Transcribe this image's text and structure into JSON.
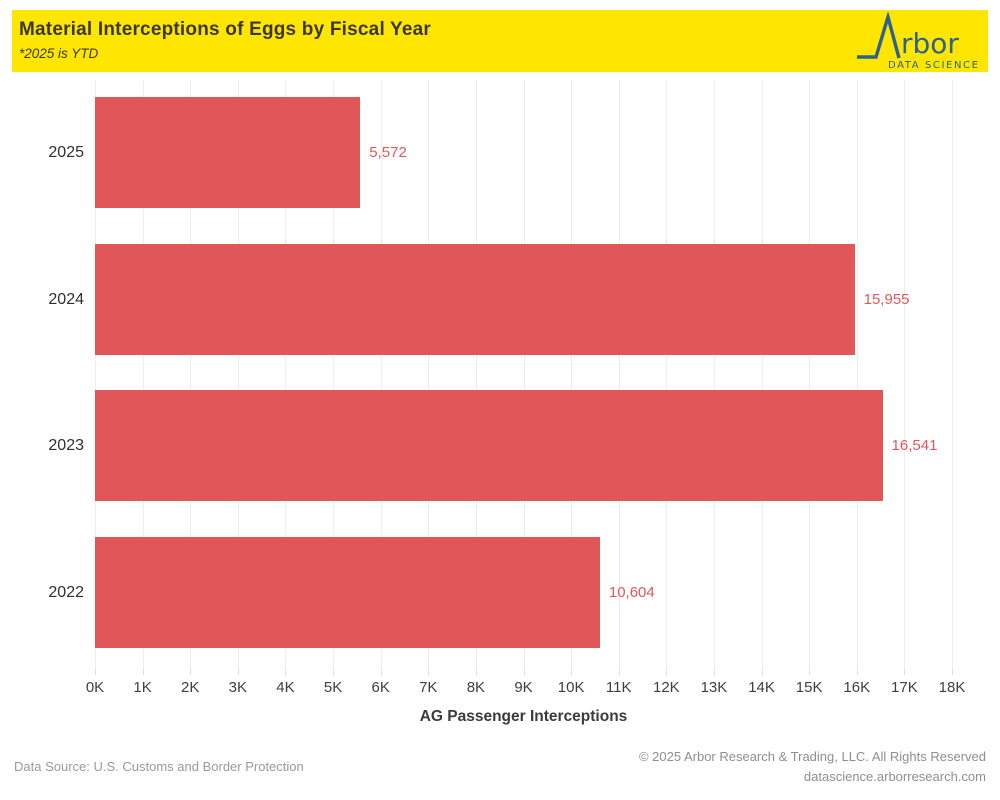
{
  "header": {
    "title": "Material Interceptions of Eggs by Fiscal Year",
    "subtitle": "*2025 is YTD",
    "background": "#FFE600",
    "logo": {
      "brand": "rbor",
      "tagline": "DATA SCIENCE",
      "color": "#2E628C",
      "icon": "arbor-peak-icon"
    }
  },
  "chart_data": {
    "type": "bar",
    "orientation": "horizontal",
    "title": "Material Interceptions of Eggs by Fiscal Year",
    "subtitle": "*2025 is YTD",
    "categories": [
      "2025",
      "2024",
      "2023",
      "2022"
    ],
    "values": [
      5572,
      15955,
      16541,
      10604
    ],
    "value_labels": [
      "5,572",
      "15,955",
      "16,541",
      "10,604"
    ],
    "xlabel": "AG Passenger Interceptions",
    "xlim": [
      0,
      18000
    ],
    "x_ticks": [
      "0K",
      "1K",
      "2K",
      "3K",
      "4K",
      "5K",
      "6K",
      "7K",
      "8K",
      "9K",
      "10K",
      "11K",
      "12K",
      "13K",
      "14K",
      "15K",
      "16K",
      "17K",
      "18K"
    ],
    "bar_color": "#E15759",
    "label_color": "#E15759",
    "gridline_color": "#EDEDED",
    "grid": true,
    "legend": false
  },
  "footer": {
    "source": "Data Source: U.S. Customs and Border Protection",
    "copyright": "© 2025 Arbor Research & Trading, LLC. All Rights Reserved",
    "website": "datascience.arborresearch.com"
  }
}
